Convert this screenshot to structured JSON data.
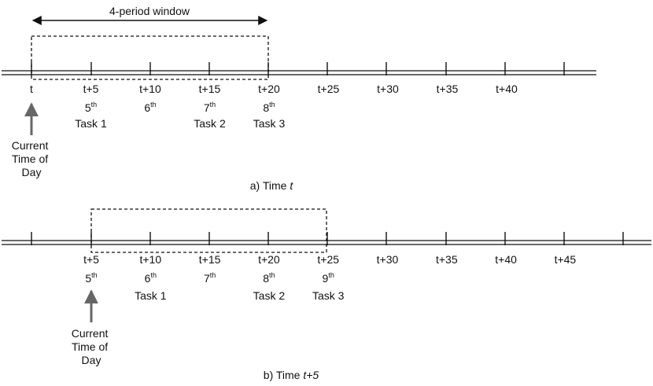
{
  "window_label": "4-period window",
  "current_time_label": [
    "Current",
    "Time of",
    "Day"
  ],
  "timeline_a": {
    "caption_prefix": "a) Time ",
    "caption_var": "t",
    "times": [
      "t",
      "t+5",
      "t+10",
      "t+15",
      "t+20",
      "t+25",
      "t+30",
      "t+35",
      "t+40"
    ],
    "periods": [
      {
        "time": "t+5",
        "num": "5",
        "suffix": "th"
      },
      {
        "time": "t+10",
        "num": "6",
        "suffix": "th"
      },
      {
        "time": "t+15",
        "num": "7",
        "suffix": "th"
      },
      {
        "time": "t+20",
        "num": "8",
        "suffix": "th"
      }
    ],
    "tasks": [
      {
        "time": "t+5",
        "label": "Task 1"
      },
      {
        "time": "t+15",
        "label": "Task 2"
      },
      {
        "time": "t+20",
        "label": "Task 3"
      }
    ]
  },
  "timeline_b": {
    "caption_prefix": "b) Time ",
    "caption_var": "t+5",
    "times": [
      "t+5",
      "t+10",
      "t+15",
      "t+20",
      "t+25",
      "t+30",
      "t+35",
      "t+40",
      "t+45"
    ],
    "periods": [
      {
        "time": "t+5",
        "num": "5",
        "suffix": "th"
      },
      {
        "time": "t+10",
        "num": "6",
        "suffix": "th"
      },
      {
        "time": "t+15",
        "num": "7",
        "suffix": "th"
      },
      {
        "time": "t+20",
        "num": "8",
        "suffix": "th"
      },
      {
        "time": "t+25",
        "num": "9",
        "suffix": "th"
      }
    ],
    "tasks": [
      {
        "time": "t+10",
        "label": "Task 1"
      },
      {
        "time": "t+20",
        "label": "Task 2"
      },
      {
        "time": "t+25",
        "label": "Task 3"
      }
    ]
  }
}
